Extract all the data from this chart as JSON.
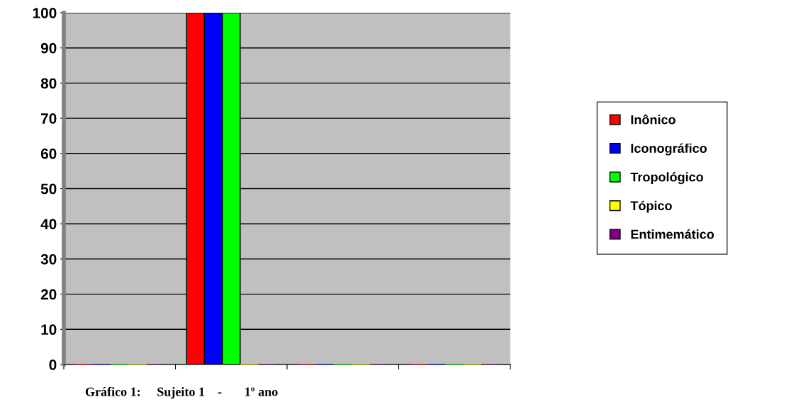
{
  "chart_data": {
    "type": "bar",
    "categories": [
      null,
      null,
      null,
      null
    ],
    "series": [
      {
        "name": "Inônico",
        "color": "#ff0000",
        "values": [
          0,
          100,
          0,
          0
        ]
      },
      {
        "name": "Iconográfico",
        "color": "#0000ff",
        "values": [
          0,
          100,
          0,
          0
        ]
      },
      {
        "name": "Tropológico",
        "color": "#00ff00",
        "values": [
          0,
          100,
          0,
          0
        ]
      },
      {
        "name": "Tópico",
        "color": "#ffff00",
        "values": [
          0,
          0,
          0,
          0
        ]
      },
      {
        "name": "Entimemático",
        "color": "#800080",
        "values": [
          0,
          0,
          0,
          0
        ]
      }
    ],
    "ylim": [
      0,
      100
    ],
    "yticks": [
      0,
      10,
      20,
      30,
      40,
      50,
      60,
      70,
      80,
      90,
      100
    ],
    "grid": "y",
    "legend": "right",
    "annotations": [
      "Gráfico 1:     Sujeito 1    -       1º ano"
    ]
  }
}
